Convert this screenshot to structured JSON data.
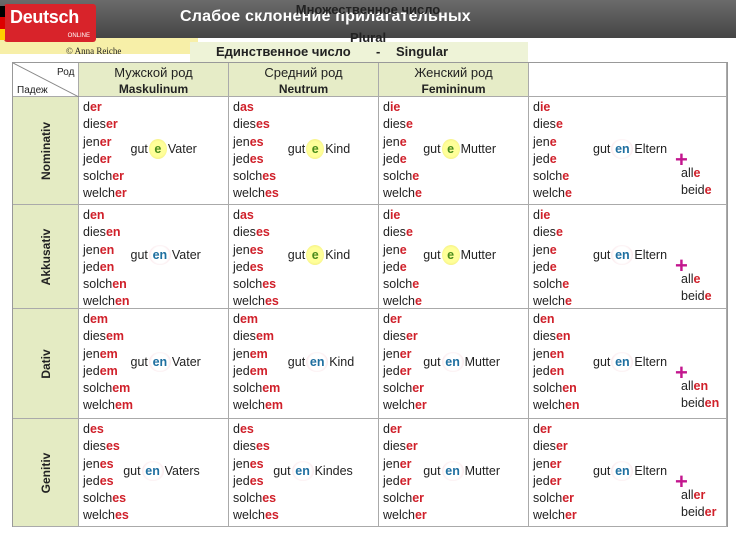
{
  "title": "Слабое склонение прилагательных",
  "logo": {
    "main": "Deutsch",
    "sub": "ONLINE"
  },
  "copyright": "© Anna Reiche",
  "singular_header": {
    "ru": "Единственное число",
    "sep": "-",
    "de": "Singular"
  },
  "plural_header": {
    "ru": "Множественное число",
    "de": "Plural"
  },
  "corner": {
    "rod": "Род",
    "padezh": "Падеж"
  },
  "genders": [
    {
      "ru": "Мужской род",
      "de": "Maskulinum"
    },
    {
      "ru": "Средний род",
      "de": "Neutrum"
    },
    {
      "ru": "Женский род",
      "de": "Femininum"
    }
  ],
  "colors": {
    "ending_red": "#d0202a",
    "ending_blue": "#1f6fa0",
    "plus_magenta": "#c3168e",
    "band_green": "#e4ebc3",
    "band_yellow": "#f7efa8"
  },
  "cases": [
    {
      "name": "Nominativ",
      "cells": [
        {
          "words": [
            [
              "d",
              "er"
            ],
            [
              "dies",
              "er"
            ],
            [
              "jen",
              "er"
            ],
            [
              "jed",
              "er"
            ],
            [
              "solch",
              "er"
            ],
            [
              "welch",
              "er"
            ]
          ],
          "adj": "gut",
          "ending": "e",
          "style": "yel",
          "noun": "Vater"
        },
        {
          "words": [
            [
              "d",
              "as"
            ],
            [
              "dies",
              "es"
            ],
            [
              "jen",
              "es"
            ],
            [
              "jed",
              "es"
            ],
            [
              "solch",
              "es"
            ],
            [
              "welch",
              "es"
            ]
          ],
          "adj": "gut",
          "ending": "e",
          "style": "yel",
          "noun": "Kind"
        },
        {
          "words": [
            [
              "d",
              "ie"
            ],
            [
              "dies",
              "e"
            ],
            [
              "jen",
              "e"
            ],
            [
              "jed",
              "e"
            ],
            [
              "solch",
              "e"
            ],
            [
              "welch",
              "e"
            ]
          ],
          "adj": "gut",
          "ending": "e",
          "style": "yel",
          "noun": "Mutter"
        },
        {
          "words": [
            [
              "d",
              "ie"
            ],
            [
              "dies",
              "e"
            ],
            [
              "jen",
              "e"
            ],
            [
              "jed",
              "e"
            ],
            [
              "solch",
              "e"
            ],
            [
              "welch",
              "e"
            ]
          ],
          "adj": "gut",
          "ending": "en",
          "style": "pink",
          "noun": "Eltern",
          "extra": [
            [
              "all",
              "e"
            ],
            [
              "beid",
              "e"
            ]
          ]
        }
      ]
    },
    {
      "name": "Akkusativ",
      "cells": [
        {
          "words": [
            [
              "d",
              "en"
            ],
            [
              "dies",
              "en"
            ],
            [
              "jen",
              "en"
            ],
            [
              "jed",
              "en"
            ],
            [
              "solch",
              "en"
            ],
            [
              "welch",
              "en"
            ]
          ],
          "adj": "gut",
          "ending": "en",
          "style": "pink",
          "noun": "Vater"
        },
        {
          "words": [
            [
              "d",
              "as"
            ],
            [
              "dies",
              "es"
            ],
            [
              "jen",
              "es"
            ],
            [
              "jed",
              "es"
            ],
            [
              "solch",
              "es"
            ],
            [
              "welch",
              "es"
            ]
          ],
          "adj": "gut",
          "ending": "e",
          "style": "yel",
          "noun": "Kind"
        },
        {
          "words": [
            [
              "d",
              "ie"
            ],
            [
              "dies",
              "e"
            ],
            [
              "jen",
              "e"
            ],
            [
              "jed",
              "e"
            ],
            [
              "solch",
              "e"
            ],
            [
              "welch",
              "e"
            ]
          ],
          "adj": "gut",
          "ending": "e",
          "style": "yel",
          "noun": "Mutter"
        },
        {
          "words": [
            [
              "d",
              "ie"
            ],
            [
              "dies",
              "e"
            ],
            [
              "jen",
              "e"
            ],
            [
              "jed",
              "e"
            ],
            [
              "solch",
              "e"
            ],
            [
              "welch",
              "e"
            ]
          ],
          "adj": "gut",
          "ending": "en",
          "style": "pink",
          "noun": "Eltern",
          "extra": [
            [
              "all",
              "e"
            ],
            [
              "beid",
              "e"
            ]
          ]
        }
      ]
    },
    {
      "name": "Dativ",
      "cells": [
        {
          "words": [
            [
              "d",
              "em"
            ],
            [
              "dies",
              "em"
            ],
            [
              "jen",
              "em"
            ],
            [
              "jed",
              "em"
            ],
            [
              "solch",
              "em"
            ],
            [
              "welch",
              "em"
            ]
          ],
          "adj": "gut",
          "ending": "en",
          "style": "pink",
          "noun": "Vater"
        },
        {
          "words": [
            [
              "d",
              "em"
            ],
            [
              "dies",
              "em"
            ],
            [
              "jen",
              "em"
            ],
            [
              "jed",
              "em"
            ],
            [
              "solch",
              "em"
            ],
            [
              "welch",
              "em"
            ]
          ],
          "adj": "gut",
          "ending": "en",
          "style": "pink",
          "noun": "Kind"
        },
        {
          "words": [
            [
              "d",
              "er"
            ],
            [
              "dies",
              "er"
            ],
            [
              "jen",
              "er"
            ],
            [
              "jed",
              "er"
            ],
            [
              "solch",
              "er"
            ],
            [
              "welch",
              "er"
            ]
          ],
          "adj": "gut",
          "ending": "en",
          "style": "pink",
          "noun": "Mutter"
        },
        {
          "words": [
            [
              "d",
              "en"
            ],
            [
              "dies",
              "en"
            ],
            [
              "jen",
              "en"
            ],
            [
              "jed",
              "en"
            ],
            [
              "solch",
              "en"
            ],
            [
              "welch",
              "en"
            ]
          ],
          "adj": "gut",
          "ending": "en",
          "style": "pink",
          "noun": "Eltern",
          "extra": [
            [
              "all",
              "en"
            ],
            [
              "beid",
              "en"
            ]
          ]
        }
      ]
    },
    {
      "name": "Genitiv",
      "cells": [
        {
          "words": [
            [
              "d",
              "es"
            ],
            [
              "dies",
              "es"
            ],
            [
              "jen",
              "es"
            ],
            [
              "jed",
              "es"
            ],
            [
              "solch",
              "es"
            ],
            [
              "welch",
              "es"
            ]
          ],
          "adj": "gut",
          "ending": "en",
          "style": "pink",
          "noun": "Vaters"
        },
        {
          "words": [
            [
              "d",
              "es"
            ],
            [
              "dies",
              "es"
            ],
            [
              "jen",
              "es"
            ],
            [
              "jed",
              "es"
            ],
            [
              "solch",
              "es"
            ],
            [
              "welch",
              "es"
            ]
          ],
          "adj": "gut",
          "ending": "en",
          "style": "pink",
          "noun": "Kindes"
        },
        {
          "words": [
            [
              "d",
              "er"
            ],
            [
              "dies",
              "er"
            ],
            [
              "jen",
              "er"
            ],
            [
              "jed",
              "er"
            ],
            [
              "solch",
              "er"
            ],
            [
              "welch",
              "er"
            ]
          ],
          "adj": "gut",
          "ending": "en",
          "style": "pink",
          "noun": "Mutter"
        },
        {
          "words": [
            [
              "d",
              "er"
            ],
            [
              "dies",
              "er"
            ],
            [
              "jen",
              "er"
            ],
            [
              "jed",
              "er"
            ],
            [
              "solch",
              "er"
            ],
            [
              "welch",
              "er"
            ]
          ],
          "adj": "gut",
          "ending": "en",
          "style": "pink",
          "noun": "Eltern",
          "extra": [
            [
              "all",
              "er"
            ],
            [
              "beid",
              "er"
            ]
          ]
        }
      ]
    }
  ]
}
